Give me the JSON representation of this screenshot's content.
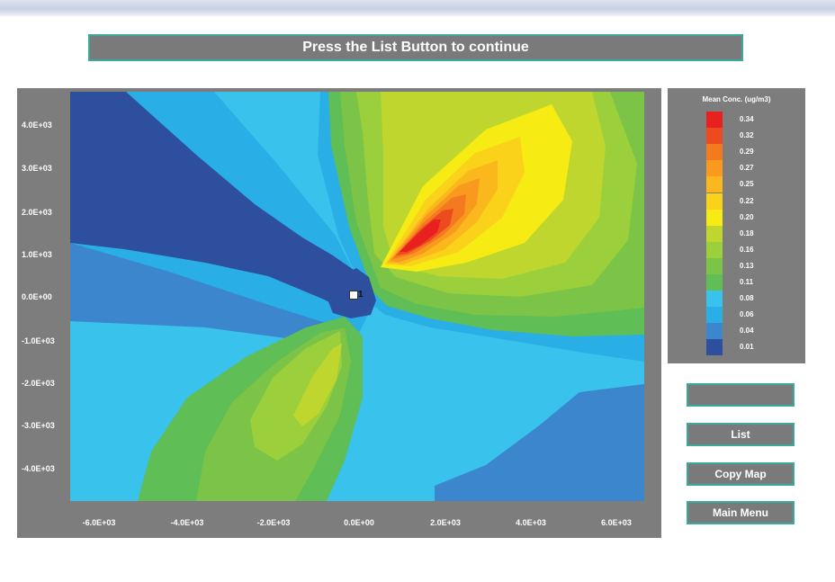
{
  "banner": {
    "text": "Press the List Button to continue"
  },
  "chart_data": {
    "type": "heatmap",
    "title": "",
    "xlabel": "",
    "ylabel": "",
    "x_ticks": [
      "-6.0E+03",
      "-4.0E+03",
      "-2.0E+03",
      "0.0E+00",
      "2.0E+03",
      "4.0E+03",
      "6.0E+03"
    ],
    "y_ticks": [
      "4.0E+03",
      "3.0E+03",
      "2.0E+03",
      "1.0E+03",
      "0.0E+00",
      "-1.0E+03",
      "-2.0E+03",
      "-3.0E+03",
      "-4.0E+03"
    ],
    "xlim": [
      -6700,
      6700
    ],
    "ylim": [
      -4800,
      4700
    ],
    "source": {
      "label": "1",
      "x": -50,
      "y": 0
    },
    "concentration_peaks": [
      {
        "x": 1700,
        "y": 1700,
        "value": 0.34
      },
      {
        "x": -1200,
        "y": -2300,
        "value": 0.18
      }
    ],
    "legend": {
      "title": "Mean Conc. (ug/m3)",
      "placement": "right",
      "levels": [
        {
          "value": "0.34",
          "color": "#e8201e"
        },
        {
          "value": "0.32",
          "color": "#ee4a1f"
        },
        {
          "value": "0.29",
          "color": "#f47a20"
        },
        {
          "value": "0.27",
          "color": "#f99a1f"
        },
        {
          "value": "0.25",
          "color": "#fbb81c"
        },
        {
          "value": "0.22",
          "color": "#fbd21a"
        },
        {
          "value": "0.20",
          "color": "#f6ec14"
        },
        {
          "value": "0.18",
          "color": "#bfd62f"
        },
        {
          "value": "0.16",
          "color": "#9bcf3c"
        },
        {
          "value": "0.13",
          "color": "#7cc447"
        },
        {
          "value": "0.11",
          "color": "#5fbe55"
        },
        {
          "value": "0.08",
          "color": "#38c2ec"
        },
        {
          "value": "0.06",
          "color": "#2aaee6"
        },
        {
          "value": "0.04",
          "color": "#3b86cc"
        },
        {
          "value": "0.01",
          "color": "#2e4f9e"
        }
      ]
    }
  },
  "buttons": {
    "blank_label": "",
    "list_label": "List",
    "copy_map_label": "Copy Map",
    "main_menu_label": "Main Menu"
  },
  "colors": {
    "panel_gray": "#7d7d7d",
    "button_border": "#3aa89a"
  }
}
